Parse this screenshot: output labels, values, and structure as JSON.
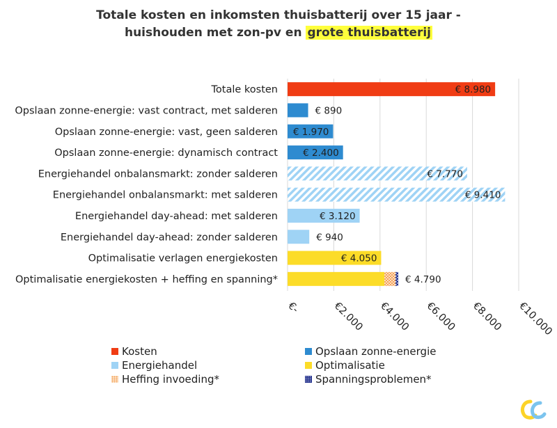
{
  "title": {
    "line1": "Totale kosten en inkomsten thuisbatterij over 15 jaar -",
    "line2_prefix": "huishouden met zon-pv en ",
    "line2_highlight": "grote thuisbatterij"
  },
  "colors": {
    "kosten": "#f03c14",
    "opslaan": "#2e8bd0",
    "energiehandel": "#9fd3f5",
    "optimalisatie": "#fcdc28",
    "heffing": "#f5a25a",
    "spanning": "#22308c",
    "grid": "#d9d9d9",
    "highlight": "#ffff3c"
  },
  "chart_data": {
    "type": "bar",
    "orientation": "horizontal",
    "title": "Totale kosten en inkomsten thuisbatterij over 15 jaar - huishouden met zon-pv en grote thuisbatterij",
    "xlim": [
      0,
      10000
    ],
    "x_ticks": [
      "€-",
      "€2.000",
      "€4.000",
      "€6.000",
      "€8.000",
      "€10.000"
    ],
    "grid": true,
    "categories": [
      "Totale kosten",
      "Opslaan zonne-energie: vast contract, met salderen",
      "Opslaan zonne-energie: vast, geen salderen",
      "Opslaan zonne-energie: dynamisch contract",
      "Energiehandel onbalansmarkt: zonder salderen",
      "Energiehandel onbalansmarkt: met salderen",
      "Energiehandel day-ahead: met salderen",
      "Energiehandel day-ahead: zonder salderen",
      "Optimalisatie verlagen energiekosten",
      "Optimalisatie energiekosten + heffing en spanning*"
    ],
    "bars": [
      {
        "segments": [
          {
            "group": "kosten",
            "value": 8980
          }
        ],
        "label": "€ 8.980",
        "label_pos": "inside"
      },
      {
        "segments": [
          {
            "group": "opslaan",
            "value": 890
          }
        ],
        "label": "€ 890",
        "label_pos": "outside"
      },
      {
        "segments": [
          {
            "group": "opslaan",
            "value": 1970
          }
        ],
        "label": "€ 1.970",
        "label_pos": "inside"
      },
      {
        "segments": [
          {
            "group": "opslaan",
            "value": 2400
          }
        ],
        "label": "€ 2.400",
        "label_pos": "inside"
      },
      {
        "segments": [
          {
            "group": "energiehandel_hatched",
            "value": 7770
          }
        ],
        "label": "€ 7.770",
        "label_pos": "inside"
      },
      {
        "segments": [
          {
            "group": "energiehandel_hatched",
            "value": 9410
          }
        ],
        "label": "€ 9.410",
        "label_pos": "inside"
      },
      {
        "segments": [
          {
            "group": "energiehandel",
            "value": 3120
          }
        ],
        "label": "€ 3.120",
        "label_pos": "inside"
      },
      {
        "segments": [
          {
            "group": "energiehandel",
            "value": 940
          }
        ],
        "label": "€ 940",
        "label_pos": "outside"
      },
      {
        "segments": [
          {
            "group": "optimalisatie",
            "value": 4050
          }
        ],
        "label": "€ 4.050",
        "label_pos": "inside"
      },
      {
        "segments": [
          {
            "group": "optimalisatie",
            "value": 4190
          },
          {
            "group": "heffing",
            "value": 480
          },
          {
            "group": "spanning",
            "value": 120
          }
        ],
        "label": "€ 4.790",
        "label_pos": "outside"
      }
    ],
    "legend": [
      {
        "key": "kosten",
        "label": "Kosten"
      },
      {
        "key": "opslaan",
        "label": "Opslaan zonne-energie"
      },
      {
        "key": "energiehandel",
        "label": "Energiehandel"
      },
      {
        "key": "optimalisatie",
        "label": "Optimalisatie"
      },
      {
        "key": "heffing",
        "label": "Heffing invoeding*"
      },
      {
        "key": "spanning",
        "label": "Spanningsproblemen*"
      }
    ],
    "legend_position": "bottom"
  }
}
